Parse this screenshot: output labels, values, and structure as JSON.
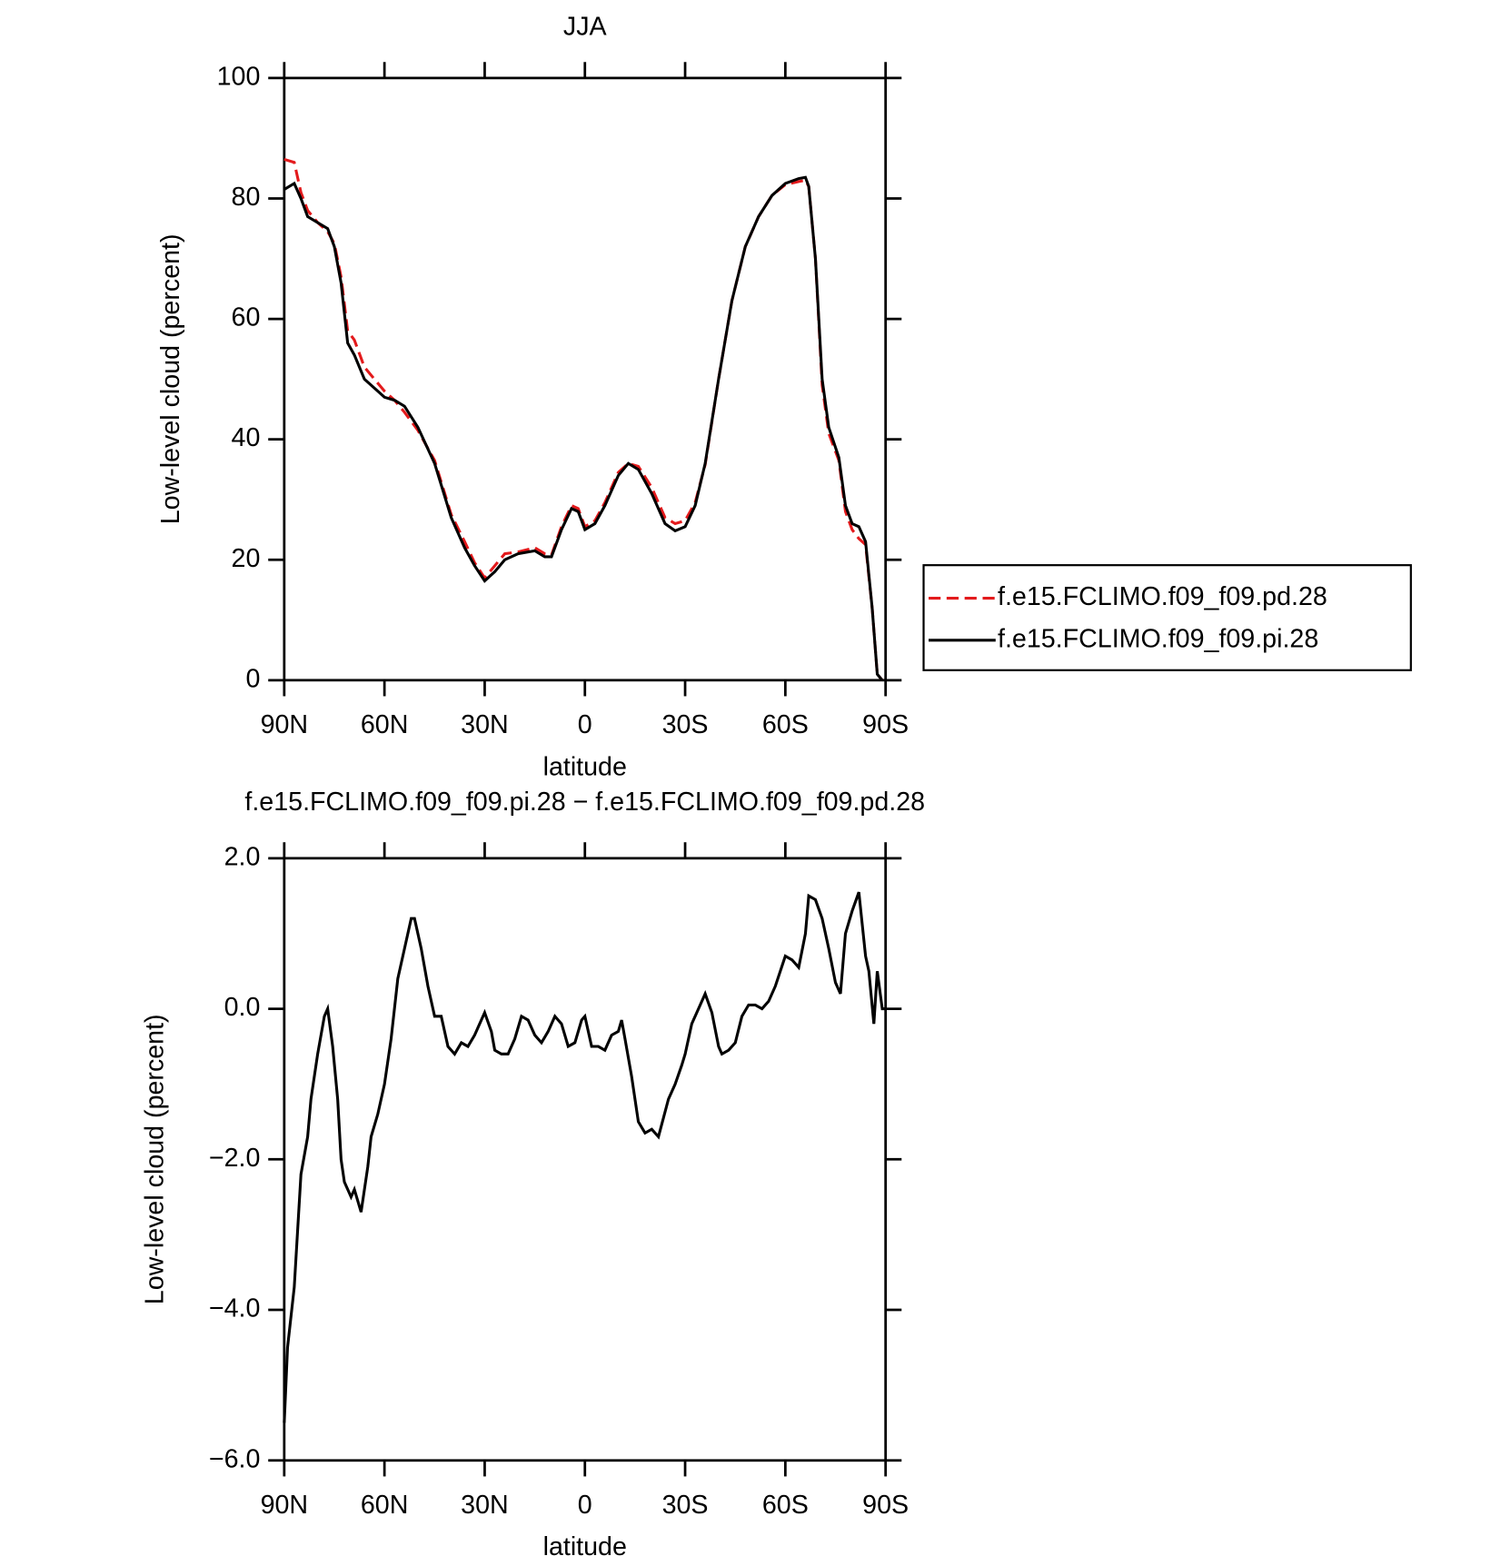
{
  "chart_data": [
    {
      "type": "line",
      "title": "JJA",
      "xlabel": "latitude",
      "ylabel": "Low-level cloud (percent)",
      "x": [
        90,
        87,
        85,
        83,
        80,
        77,
        75,
        73,
        71,
        69,
        66,
        63,
        60,
        57,
        54,
        50,
        45,
        40,
        36,
        33,
        30,
        27,
        24,
        20,
        15,
        12,
        10,
        7,
        4,
        2,
        0,
        -3,
        -6,
        -10,
        -13,
        -16,
        -20,
        -24,
        -27,
        -30,
        -33,
        -36,
        -40,
        -44,
        -48,
        -52,
        -56,
        -60,
        -64,
        -66,
        -67,
        -69,
        -71,
        -73,
        -76,
        -78,
        -80,
        -82,
        -84,
        -86,
        -87.5,
        -89
      ],
      "series": [
        {
          "name": "f.e15.FCLIMO.f09_f09.pd.28",
          "color": "#e31a1c",
          "dash": true,
          "values": [
            86.5,
            86,
            81,
            78,
            76,
            74.5,
            72.5,
            67,
            58,
            56.5,
            52,
            50,
            48,
            46.5,
            44.5,
            41.5,
            36.5,
            27.5,
            23,
            19.5,
            17,
            19,
            21,
            21.3,
            22,
            21,
            20.8,
            25.5,
            29,
            28.5,
            25.5,
            26.5,
            29.5,
            34.5,
            36,
            35.5,
            32,
            27,
            26,
            26.5,
            29.5,
            35.8,
            50,
            63,
            72,
            77,
            80.5,
            82.3,
            82.8,
            83,
            82,
            70,
            49,
            41,
            36.5,
            28,
            25,
            23.5,
            22.5,
            12,
            1,
            0
          ]
        },
        {
          "name": "f.e15.FCLIMO.f09_f09.pi.28",
          "color": "#000000",
          "dash": false,
          "values": [
            81.5,
            82.5,
            80,
            77,
            76,
            75,
            72,
            66,
            56,
            54,
            50,
            48.5,
            47,
            46.5,
            45.5,
            42,
            36,
            27,
            22,
            19,
            16.5,
            18,
            20,
            21,
            21.5,
            20.5,
            20.5,
            25,
            28.5,
            28,
            25,
            26,
            29,
            34,
            36,
            35,
            31,
            26,
            24.8,
            25.5,
            29,
            36,
            50,
            63,
            72,
            77,
            80.5,
            82.5,
            83.3,
            83.5,
            82,
            70,
            50,
            42,
            37,
            29,
            26,
            25.5,
            23,
            12,
            1,
            0
          ]
        }
      ],
      "xlim": [
        90,
        -90
      ],
      "xticks": [
        {
          "value": 90,
          "label": "90N"
        },
        {
          "value": 60,
          "label": "60N"
        },
        {
          "value": 30,
          "label": "30N"
        },
        0,
        {
          "value": -30,
          "label": "30S"
        },
        {
          "value": -60,
          "label": "60S"
        },
        {
          "value": -90,
          "label": "90S"
        }
      ],
      "ylim": [
        0,
        100
      ],
      "yticks": [
        0,
        20,
        40,
        60,
        80,
        100
      ],
      "legend": "right"
    },
    {
      "type": "line",
      "title": "f.e15.FCLIMO.f09_f09.pi.28 − f.e15.FCLIMO.f09_f09.pd.28",
      "xlabel": "latitude",
      "ylabel": "Low-level cloud (percent)",
      "x": [
        90,
        89,
        87,
        85,
        83,
        82,
        80,
        78,
        77,
        75.5,
        74,
        73,
        72,
        70,
        69,
        67,
        65,
        64,
        62,
        60,
        58,
        56,
        54,
        52,
        51,
        49,
        47,
        45,
        43,
        41,
        39,
        37,
        35,
        33,
        30,
        28,
        27,
        25,
        23,
        21,
        19,
        17,
        15,
        13,
        11,
        9,
        7,
        5,
        3,
        1,
        0,
        -2,
        -4,
        -6,
        -8,
        -10,
        -11,
        -12,
        -14,
        -16,
        -18,
        -20,
        -22,
        -25,
        -27,
        -29,
        -30,
        -32,
        -34,
        -36,
        -38,
        -40,
        -41,
        -43,
        -45,
        -47,
        -49,
        -51,
        -53,
        -55,
        -57,
        -60,
        -62,
        -64,
        -66,
        -67,
        -69,
        -71,
        -73,
        -75,
        -76.5,
        -78,
        -80,
        -82,
        -84,
        -85,
        -86.5,
        -87.5,
        -89,
        -90
      ],
      "series": [
        {
          "name": null,
          "color": "#000000",
          "dash": false,
          "values": [
            -5.5,
            -4.5,
            -3.7,
            -2.2,
            -1.7,
            -1.2,
            -0.6,
            -0.1,
            0,
            -0.5,
            -1.2,
            -2.0,
            -2.3,
            -2.5,
            -2.4,
            -2.7,
            -2.1,
            -1.7,
            -1.4,
            -1.0,
            -0.4,
            0.4,
            0.8,
            1.2,
            1.2,
            0.8,
            0.3,
            -0.1,
            -0.1,
            -0.5,
            -0.6,
            -0.45,
            -0.5,
            -0.35,
            -0.05,
            -0.3,
            -0.55,
            -0.6,
            -0.6,
            -0.4,
            -0.1,
            -0.15,
            -0.35,
            -0.45,
            -0.3,
            -0.1,
            -0.2,
            -0.5,
            -0.45,
            -0.15,
            -0.1,
            -0.5,
            -0.5,
            -0.55,
            -0.35,
            -0.3,
            -0.15,
            -0.4,
            -0.9,
            -1.5,
            -1.65,
            -1.6,
            -1.7,
            -1.2,
            -1.0,
            -0.75,
            -0.6,
            -0.2,
            0,
            0.2,
            -0.05,
            -0.5,
            -0.6,
            -0.55,
            -0.45,
            -0.1,
            0.05,
            0.05,
            0,
            0.1,
            0.3,
            0.7,
            0.65,
            0.55,
            1.0,
            1.5,
            1.45,
            1.2,
            0.8,
            0.35,
            0.2,
            1.0,
            1.3,
            1.55,
            0.7,
            0.5,
            -0.2,
            0.5,
            0,
            0
          ]
        }
      ],
      "xlim": [
        90,
        -90
      ],
      "xticks": [
        {
          "value": 90,
          "label": "90N"
        },
        {
          "value": 60,
          "label": "60N"
        },
        {
          "value": 30,
          "label": "30N"
        },
        0,
        {
          "value": -30,
          "label": "30S"
        },
        {
          "value": -60,
          "label": "60S"
        },
        {
          "value": -90,
          "label": "90S"
        }
      ],
      "ylim": [
        -6,
        2
      ],
      "yticks": [
        {
          "value": -6,
          "label": "−6.0"
        },
        {
          "value": -4,
          "label": "−4.0"
        },
        {
          "value": -2,
          "label": "−2.0"
        },
        {
          "value": 0,
          "label": "0.0"
        },
        {
          "value": 2,
          "label": "2.0"
        }
      ]
    }
  ]
}
